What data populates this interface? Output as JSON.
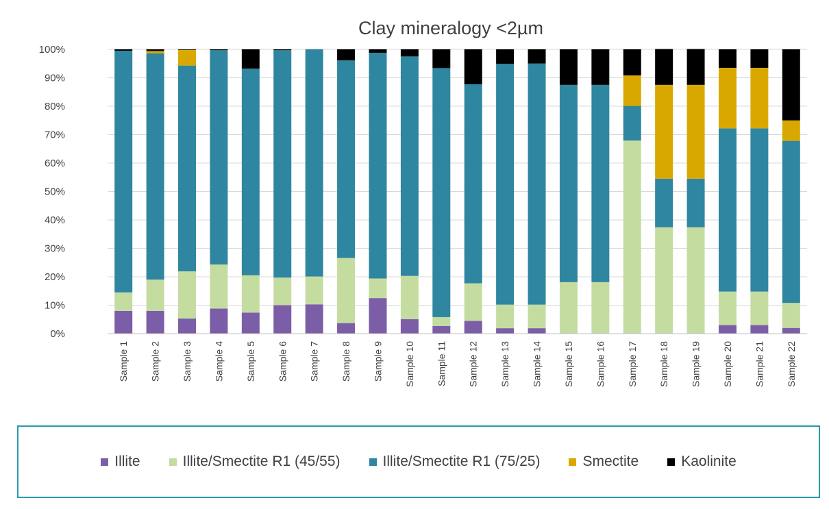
{
  "chart_data": {
    "type": "bar",
    "stacked": true,
    "title": "Clay mineralogy <2µm",
    "xlabel": "",
    "ylabel": "",
    "ylim": [
      0,
      100
    ],
    "y_ticks": [
      "0%",
      "10%",
      "20%",
      "30%",
      "40%",
      "50%",
      "60%",
      "70%",
      "80%",
      "90%",
      "100%"
    ],
    "grid": true,
    "legend_position": "bottom",
    "categories": [
      "Sample 1",
      "Sample 2",
      "Sample 3",
      "Sample 4",
      "Sample 5",
      "Sample 6",
      "Sample 7",
      "Sample 8",
      "Sample 9",
      "Sample 10",
      "Sample 11",
      "Sample 12",
      "Sample 13",
      "Sample 14",
      "Sample 15",
      "Sample 16",
      "Sample 17",
      "Sample 18",
      "Sample 19",
      "Sample 20",
      "Sample 21",
      "Sample 22"
    ],
    "series": [
      {
        "name": "Illite",
        "color": "#7b5ea7",
        "values": [
          8,
          8,
          5.3,
          8.8,
          7.4,
          10,
          10.3,
          3.7,
          12.5,
          5.1,
          2.7,
          4.5,
          1.9,
          1.9,
          0,
          0,
          0,
          0,
          0,
          3,
          3,
          2
        ]
      },
      {
        "name": "Illite/Smectite R1 (45/55)",
        "color": "#c5dca0",
        "values": [
          6.5,
          11,
          16.6,
          15.5,
          13.1,
          9.7,
          9.8,
          22.9,
          6.9,
          15.2,
          3.1,
          13.2,
          8.3,
          8.3,
          18.1,
          18.1,
          67.9,
          37.4,
          37.4,
          11.8,
          11.8,
          8.8
        ]
      },
      {
        "name": "Illite/Smectite R1 (75/25)",
        "color": "#2e86a0",
        "values": [
          85,
          79.6,
          72.4,
          75.4,
          72.7,
          80,
          79.9,
          69.5,
          79.4,
          77.2,
          87.6,
          70,
          84.7,
          84.8,
          69.4,
          69.4,
          12.2,
          17.1,
          17.1,
          57.4,
          57.4,
          57
        ]
      },
      {
        "name": "Smectite",
        "color": "#d9a800",
        "values": [
          0,
          0.8,
          5.5,
          0,
          0,
          0,
          0,
          0,
          0,
          0,
          0,
          0,
          0,
          0,
          0,
          0,
          10.7,
          33,
          33,
          21.3,
          21.3,
          7.2
        ]
      },
      {
        "name": "Kaolinite",
        "color": "#000000",
        "values": [
          0.5,
          0.6,
          0.2,
          0.3,
          6.8,
          0.3,
          0,
          3.9,
          1.2,
          2.5,
          6.6,
          12.3,
          5.1,
          5,
          12.5,
          12.5,
          9.2,
          12.6,
          12.6,
          6.5,
          6.5,
          25
        ]
      }
    ]
  }
}
